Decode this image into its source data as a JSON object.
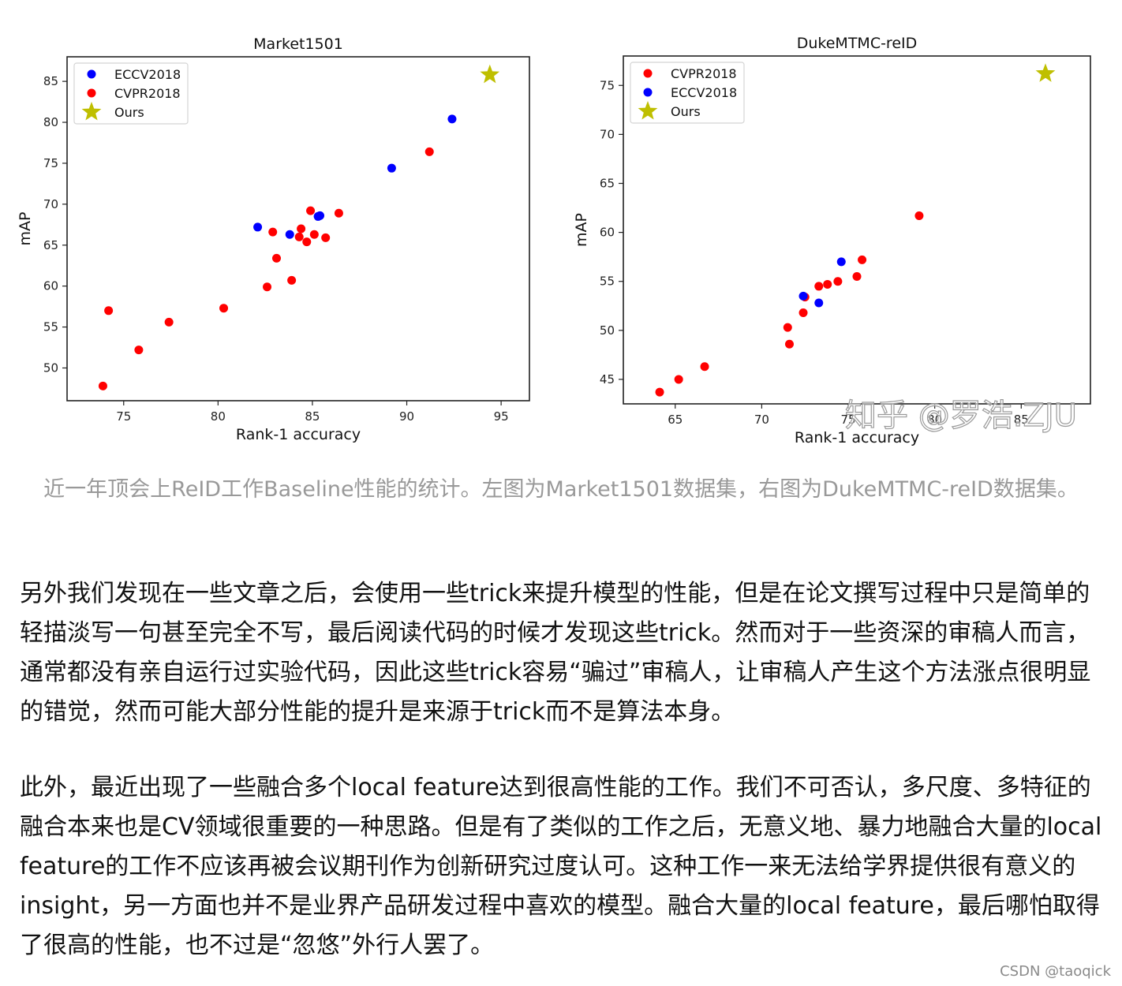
{
  "chart_data": [
    {
      "type": "scatter",
      "title": "Market1501",
      "xlabel": "Rank-1 accuracy",
      "ylabel": "mAP",
      "xlim": [
        72,
        96.5
      ],
      "ylim": [
        46,
        88
      ],
      "xticks": [
        75,
        80,
        85,
        90,
        95
      ],
      "yticks": [
        50,
        55,
        60,
        65,
        70,
        75,
        80,
        85
      ],
      "legend_position": "top-left",
      "grid": false,
      "series": [
        {
          "name": "ECCV2018",
          "marker": "circle",
          "color": "#0000ff",
          "points": [
            [
              82.1,
              67.2
            ],
            [
              83.8,
              66.3
            ],
            [
              85.3,
              68.5
            ],
            [
              85.4,
              68.6
            ],
            [
              89.2,
              74.4
            ],
            [
              92.4,
              80.4
            ]
          ]
        },
        {
          "name": "CVPR2018",
          "marker": "circle",
          "color": "#ff0000",
          "points": [
            [
              73.9,
              47.8
            ],
            [
              74.2,
              57.0
            ],
            [
              75.8,
              52.2
            ],
            [
              77.4,
              55.6
            ],
            [
              80.3,
              57.3
            ],
            [
              82.6,
              59.9
            ],
            [
              82.9,
              66.6
            ],
            [
              83.1,
              63.4
            ],
            [
              83.9,
              60.7
            ],
            [
              84.3,
              66.0
            ],
            [
              84.4,
              67.0
            ],
            [
              84.7,
              65.4
            ],
            [
              84.9,
              69.2
            ],
            [
              85.1,
              66.3
            ],
            [
              85.7,
              65.9
            ],
            [
              86.4,
              68.9
            ],
            [
              91.2,
              76.4
            ]
          ]
        },
        {
          "name": "Ours",
          "marker": "star",
          "color": "#bfbf00",
          "points": [
            [
              94.4,
              85.8
            ]
          ]
        }
      ]
    },
    {
      "type": "scatter",
      "title": "DukeMTMC-reID",
      "xlabel": "Rank-1 accuracy",
      "ylabel": "mAP",
      "xlim": [
        62,
        89
      ],
      "ylim": [
        42.5,
        78
      ],
      "xticks": [
        65,
        70,
        75,
        80,
        85
      ],
      "yticks": [
        45,
        50,
        55,
        60,
        65,
        70,
        75
      ],
      "legend_position": "top-left",
      "grid": false,
      "series": [
        {
          "name": "CVPR2018",
          "marker": "circle",
          "color": "#ff0000",
          "points": [
            [
              64.1,
              43.7
            ],
            [
              65.2,
              45.0
            ],
            [
              66.7,
              46.3
            ],
            [
              71.5,
              50.3
            ],
            [
              71.6,
              48.6
            ],
            [
              72.4,
              51.8
            ],
            [
              72.5,
              53.4
            ],
            [
              73.3,
              54.5
            ],
            [
              73.8,
              54.7
            ],
            [
              74.4,
              55.0
            ],
            [
              75.5,
              55.5
            ],
            [
              75.8,
              57.2
            ],
            [
              79.1,
              61.7
            ]
          ]
        },
        {
          "name": "ECCV2018",
          "marker": "circle",
          "color": "#0000ff",
          "points": [
            [
              72.4,
              53.5
            ],
            [
              73.3,
              52.8
            ],
            [
              74.6,
              57.0
            ]
          ]
        },
        {
          "name": "Ours",
          "marker": "star",
          "color": "#bfbf00",
          "points": [
            [
              86.4,
              76.2
            ]
          ]
        }
      ]
    }
  ],
  "figure_watermark": "知乎 @罗浩.ZJU",
  "caption": "近一年顶会上ReID工作Baseline性能的统计。左图为Market1501数据集，右图为DukeMTMC-reID数据集。",
  "paragraphs": [
    "另外我们发现在一些文章之后，会使用一些trick来提升模型的性能，但是在论文撰写过程中只是简单的轻描淡写一句甚至完全不写，最后阅读代码的时候才发现这些trick。然而对于一些资深的审稿人而言，通常都没有亲自运行过实验代码，因此这些trick容易“骗过”审稿人，让审稿人产生这个方法涨点很明显的错觉，然而可能大部分性能的提升是来源于trick而不是算法本身。",
    "此外，最近出现了一些融合多个local feature达到很高性能的工作。我们不可否认，多尺度、多特征的融合本来也是CV领域很重要的一种思路。但是有了类似的工作之后，无意义地、暴力地融合大量的local feature的工作不应该再被会议期刊作为创新研究过度认可。这种工作一来无法给学界提供很有意义的insight，另一方面也并不是业界产品研发过程中喜欢的模型。融合大量的local feature，最后哪怕取得了很高的性能，也不过是“忽悠”外行人罢了。"
  ],
  "watermark": "CSDN @taoqick"
}
